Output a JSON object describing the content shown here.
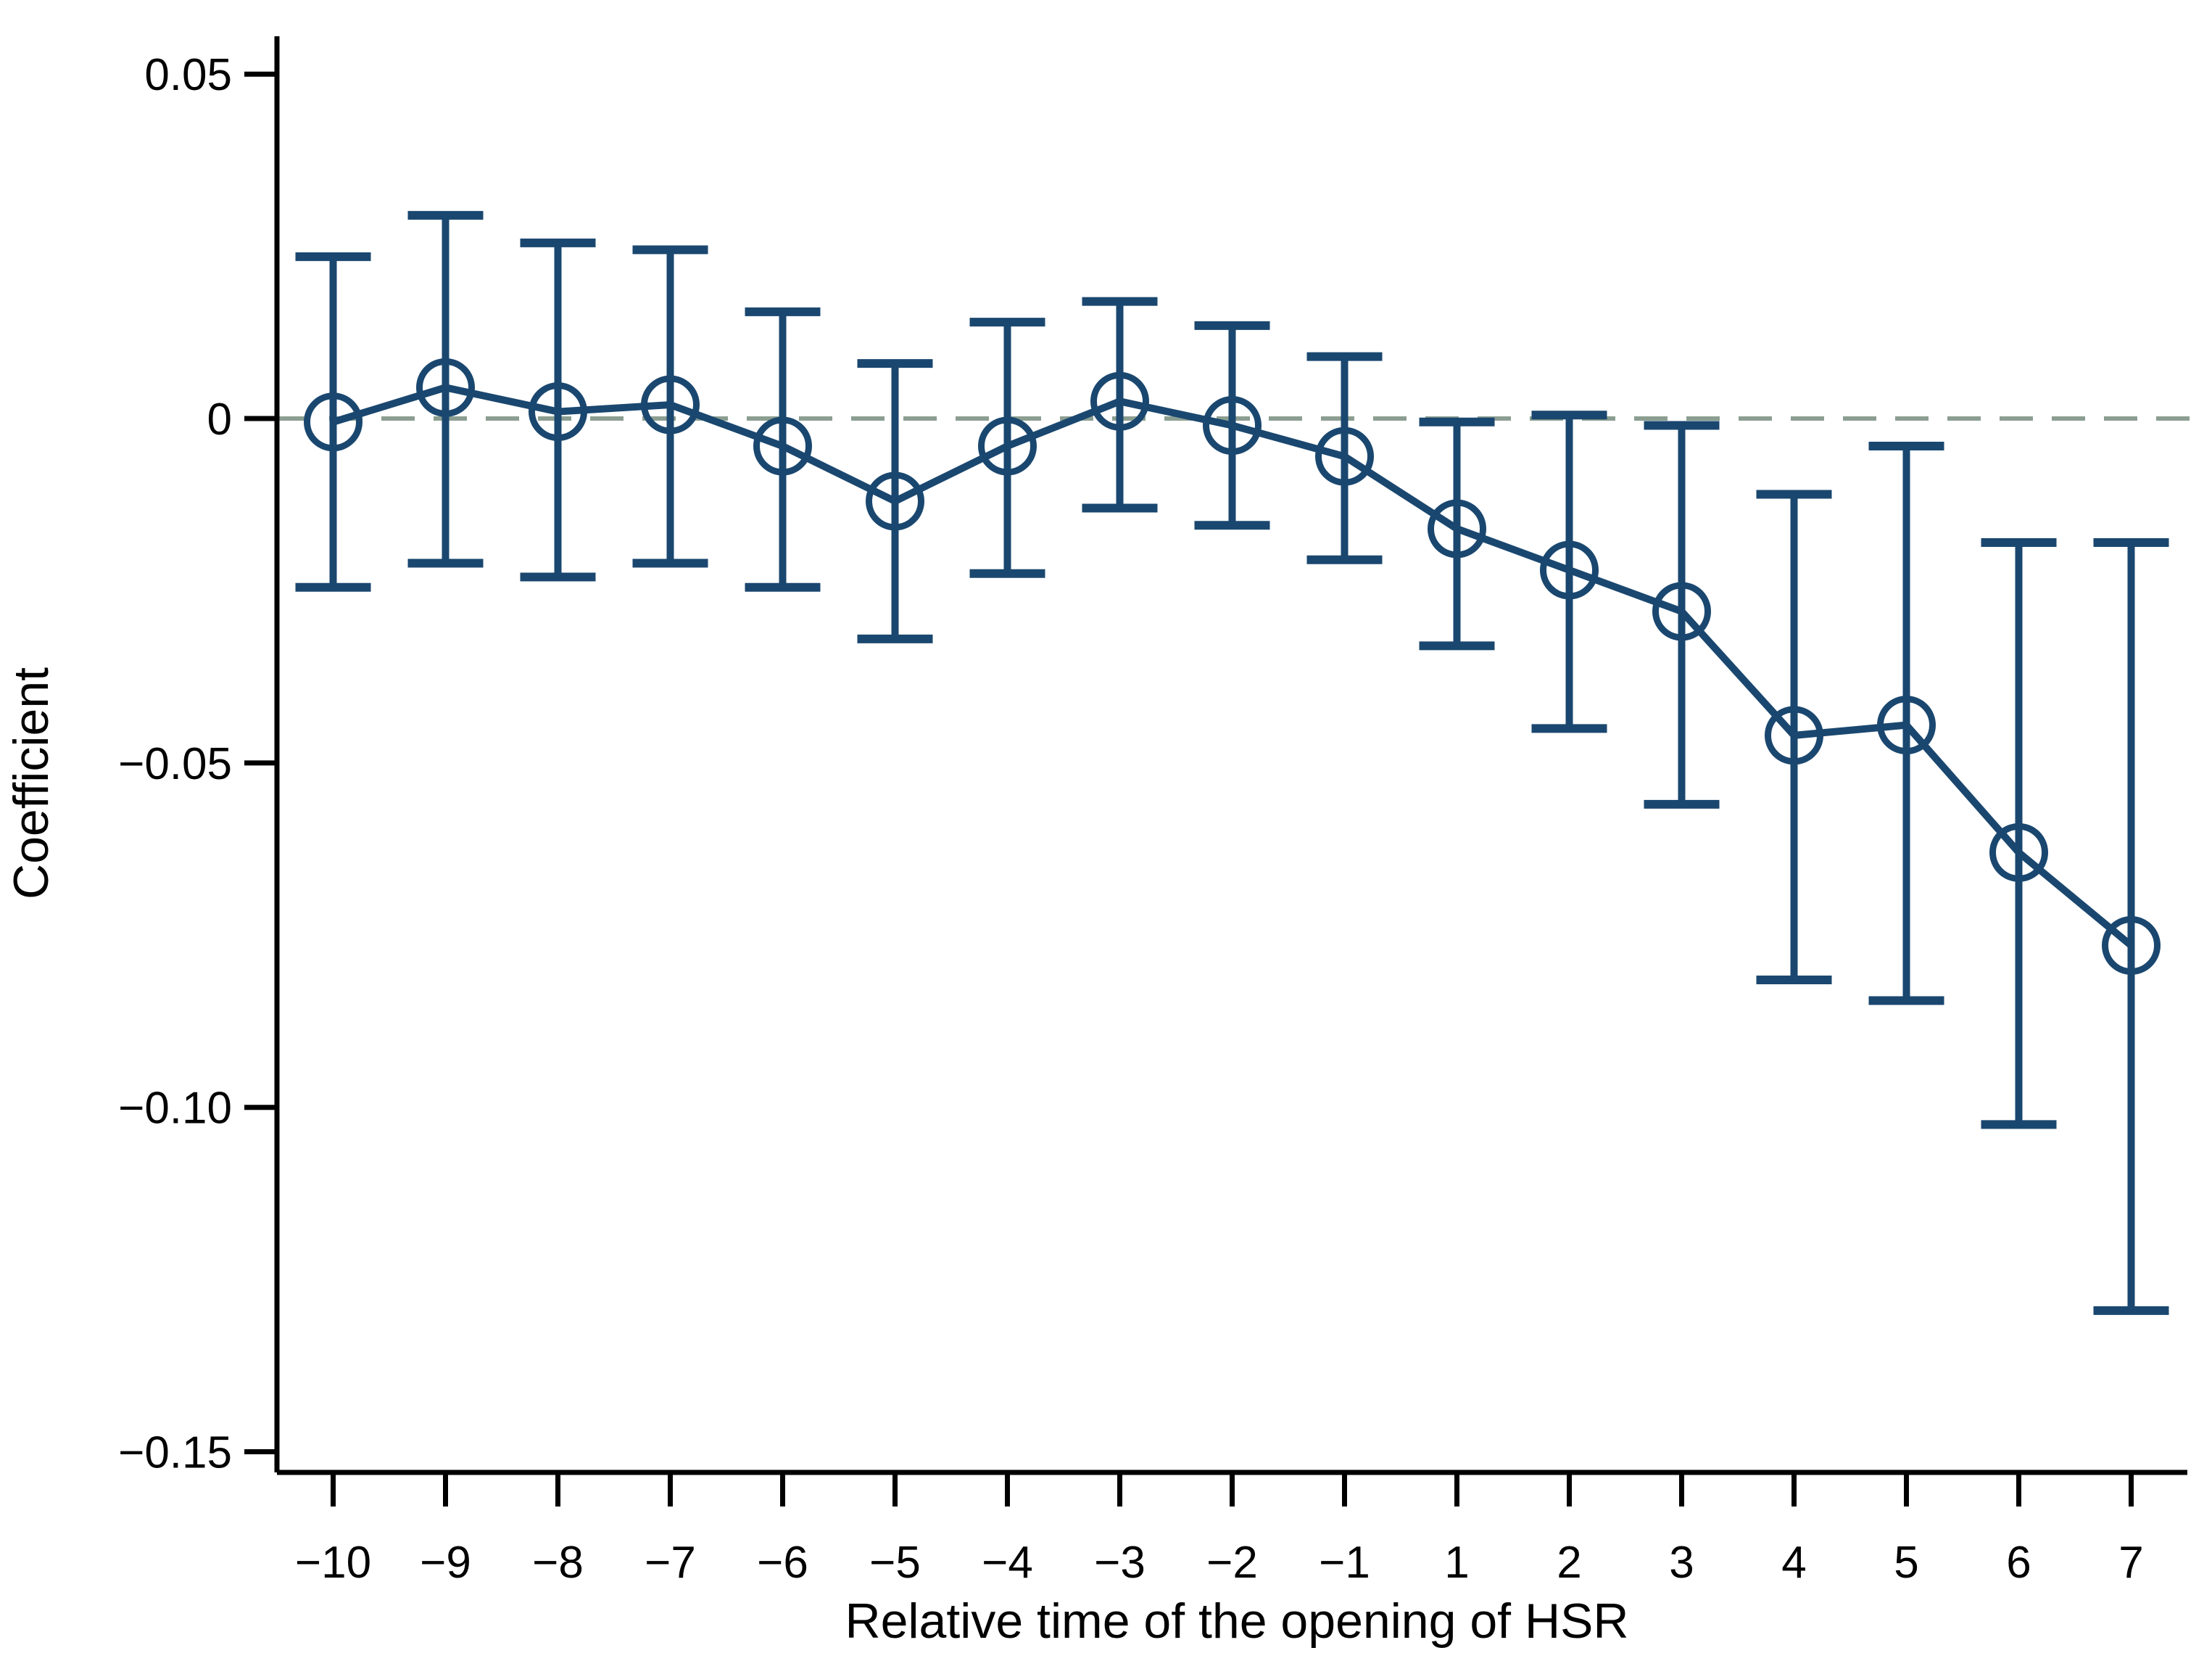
{
  "chart_data": {
    "type": "line",
    "subtype": "coefficient-plot-with-error-bars",
    "title": "",
    "xlabel": "Relative time of the opening of HSR",
    "ylabel": "Coefficient",
    "grid": false,
    "legend": "none",
    "ylim": [
      -0.153,
      0.0555
    ],
    "y_ticks": [
      0.05,
      0,
      -0.05,
      -0.1,
      -0.15
    ],
    "y_tick_labels": [
      "0.05",
      "0",
      "−0.05",
      "−0.10",
      "−0.15"
    ],
    "x_tick_labels": [
      "−10",
      "−9",
      "−8",
      "−7",
      "−6",
      "−5",
      "−4",
      "−3",
      "−2",
      "−1",
      "1",
      "2",
      "3",
      "4",
      "5",
      "6",
      "7"
    ],
    "zero_line": {
      "value": 0,
      "style": "dashed",
      "color": "#8b9e91"
    },
    "series": [
      {
        "name": "coefficient",
        "marker": "open-circle",
        "color": "#1a476f",
        "points": [
          {
            "x": "−10",
            "coef": -0.0005,
            "ci_low": -0.0245,
            "ci_high": 0.0235
          },
          {
            "x": "−9",
            "coef": 0.0045,
            "ci_low": -0.021,
            "ci_high": 0.0295
          },
          {
            "x": "−8",
            "coef": 0.001,
            "ci_low": -0.023,
            "ci_high": 0.0255
          },
          {
            "x": "−7",
            "coef": 0.002,
            "ci_low": -0.021,
            "ci_high": 0.0245
          },
          {
            "x": "−6",
            "coef": -0.004,
            "ci_low": -0.0245,
            "ci_high": 0.0155
          },
          {
            "x": "−5",
            "coef": -0.012,
            "ci_low": -0.032,
            "ci_high": 0.008
          },
          {
            "x": "−4",
            "coef": -0.004,
            "ci_low": -0.0225,
            "ci_high": 0.014
          },
          {
            "x": "−3",
            "coef": 0.0025,
            "ci_low": -0.013,
            "ci_high": 0.017
          },
          {
            "x": "−2",
            "coef": -0.001,
            "ci_low": -0.0155,
            "ci_high": 0.0135
          },
          {
            "x": "−1",
            "coef": -0.0055,
            "ci_low": -0.0205,
            "ci_high": 0.009
          },
          {
            "x": "1",
            "coef": -0.016,
            "ci_low": -0.033,
            "ci_high": -0.0005
          },
          {
            "x": "2",
            "coef": -0.022,
            "ci_low": -0.045,
            "ci_high": 0.0005
          },
          {
            "x": "3",
            "coef": -0.028,
            "ci_low": -0.056,
            "ci_high": -0.001
          },
          {
            "x": "4",
            "coef": -0.046,
            "ci_low": -0.0815,
            "ci_high": -0.011
          },
          {
            "x": "5",
            "coef": -0.0445,
            "ci_low": -0.0845,
            "ci_high": -0.004
          },
          {
            "x": "6",
            "coef": -0.063,
            "ci_low": -0.1025,
            "ci_high": -0.018
          },
          {
            "x": "7",
            "coef": -0.0765,
            "ci_low": -0.1295,
            "ci_high": -0.018
          }
        ]
      }
    ]
  }
}
